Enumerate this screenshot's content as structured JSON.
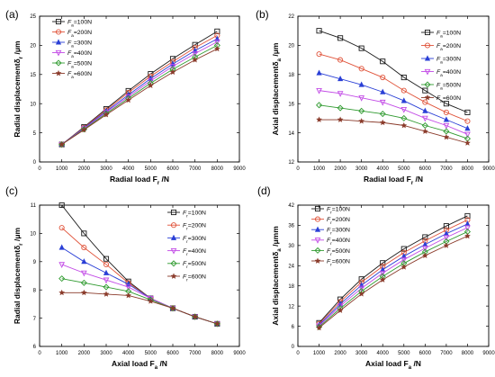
{
  "figure": {
    "series_colors": [
      "#1a1a1a",
      "#e0533a",
      "#2a3fd6",
      "#c24ae6",
      "#2f9a2f",
      "#8a3a2a"
    ],
    "series_markers": [
      "square",
      "circle",
      "triangle-up",
      "triangle-down",
      "diamond",
      "star"
    ]
  },
  "chart_data": [
    {
      "type": "line",
      "panel_label": "(a)",
      "xlabel": "Radial load F",
      "xlabel_sub": "r",
      "xlabel_unit": " /N",
      "ylabel": "Radial displacementδ",
      "ylabel_sub": "r",
      "ylabel_unit": " /μm",
      "xlim": [
        0,
        9000
      ],
      "ylim": [
        0,
        25
      ],
      "xticks": [
        0,
        1000,
        2000,
        3000,
        4000,
        5000,
        6000,
        7000,
        8000,
        9000
      ],
      "yticks": [
        0,
        5,
        10,
        15,
        20,
        25
      ],
      "legend_position": "top-left",
      "x": [
        1000,
        2000,
        3000,
        4000,
        5000,
        6000,
        7000,
        8000
      ],
      "series": [
        {
          "name": "F",
          "sub": "a",
          "suffix": "=100N",
          "values": [
            3.0,
            6.0,
            9.1,
            12.2,
            15.1,
            17.7,
            20.1,
            22.4
          ]
        },
        {
          "name": "F",
          "sub": "a",
          "suffix": "=200N",
          "values": [
            3.0,
            5.9,
            8.9,
            11.9,
            14.7,
            17.2,
            19.6,
            21.7
          ]
        },
        {
          "name": "F",
          "sub": "a",
          "suffix": "=300N",
          "values": [
            3.0,
            5.8,
            8.7,
            11.5,
            14.3,
            16.8,
            19.1,
            21.1
          ]
        },
        {
          "name": "F",
          "sub": "a",
          "suffix": "=400N",
          "values": [
            3.0,
            5.7,
            8.5,
            11.2,
            13.9,
            16.4,
            18.6,
            20.6
          ]
        },
        {
          "name": "F",
          "sub": "a",
          "suffix": "=500N",
          "values": [
            3.0,
            5.6,
            8.3,
            10.9,
            13.5,
            15.9,
            18.0,
            20.0
          ]
        },
        {
          "name": "F",
          "sub": "a",
          "suffix": "=600N",
          "values": [
            3.0,
            5.5,
            8.1,
            10.6,
            13.1,
            15.4,
            17.5,
            19.4
          ]
        }
      ]
    },
    {
      "type": "line",
      "panel_label": "(b)",
      "xlabel": "Radial load F",
      "xlabel_sub": "r",
      "xlabel_unit": " /N",
      "ylabel": "Axial displacementδ",
      "ylabel_sub": "a",
      "ylabel_unit": " /μm",
      "xlim": [
        0,
        9000
      ],
      "ylim": [
        12,
        22
      ],
      "xticks": [
        0,
        1000,
        2000,
        3000,
        4000,
        5000,
        6000,
        7000,
        8000,
        9000
      ],
      "yticks": [
        12,
        14,
        16,
        18,
        20,
        22
      ],
      "legend_position": "top-right",
      "x": [
        1000,
        2000,
        3000,
        4000,
        5000,
        6000,
        7000,
        8000
      ],
      "series": [
        {
          "name": "F",
          "sub": "a",
          "suffix": "=100N",
          "values": [
            21.0,
            20.5,
            19.8,
            18.9,
            17.8,
            16.9,
            16.0,
            15.4
          ]
        },
        {
          "name": "F",
          "sub": "a",
          "suffix": "=200N",
          "values": [
            19.4,
            19.0,
            18.4,
            17.8,
            16.9,
            16.1,
            15.4,
            14.8
          ]
        },
        {
          "name": "F",
          "sub": "a",
          "suffix": "=300N",
          "values": [
            18.1,
            17.7,
            17.3,
            16.8,
            16.2,
            15.5,
            14.9,
            14.3
          ]
        },
        {
          "name": "F",
          "sub": "a",
          "suffix": "=400N",
          "values": [
            16.9,
            16.7,
            16.4,
            16.1,
            15.6,
            15.0,
            14.5,
            13.9
          ]
        },
        {
          "name": "F",
          "sub": "a",
          "suffix": "=500N",
          "values": [
            15.9,
            15.7,
            15.5,
            15.3,
            15.0,
            14.5,
            14.1,
            13.6
          ]
        },
        {
          "name": "F",
          "sub": "a",
          "suffix": "=600N",
          "values": [
            14.9,
            14.9,
            14.8,
            14.7,
            14.5,
            14.1,
            13.7,
            13.3
          ]
        }
      ]
    },
    {
      "type": "line",
      "panel_label": "(c)",
      "xlabel": "Axial load F",
      "xlabel_sub": "a",
      "xlabel_unit": " /N",
      "ylabel": "Radial displacementδ",
      "ylabel_sub": "r",
      "ylabel_unit": " /μm",
      "xlim": [
        0,
        9000
      ],
      "ylim": [
        6,
        11
      ],
      "xticks": [
        0,
        1000,
        2000,
        3000,
        4000,
        5000,
        6000,
        7000,
        8000,
        9000
      ],
      "yticks": [
        6,
        7,
        8,
        9,
        10,
        11
      ],
      "legend_position": "top-right",
      "x": [
        1000,
        2000,
        3000,
        4000,
        5000,
        6000,
        7000,
        8000
      ],
      "series": [
        {
          "name": "F",
          "sub": "r",
          "suffix": "=100N",
          "values": [
            11.0,
            10.0,
            9.1,
            8.3,
            7.7,
            7.35,
            7.05,
            6.8
          ]
        },
        {
          "name": "F",
          "sub": "r",
          "suffix": "=200N",
          "values": [
            10.2,
            9.5,
            8.9,
            8.25,
            7.7,
            7.35,
            7.05,
            6.8
          ]
        },
        {
          "name": "F",
          "sub": "r",
          "suffix": "=300N",
          "values": [
            9.5,
            9.0,
            8.6,
            8.2,
            7.7,
            7.35,
            7.05,
            6.8
          ]
        },
        {
          "name": "F",
          "sub": "r",
          "suffix": "=400N",
          "values": [
            8.9,
            8.6,
            8.35,
            8.1,
            7.7,
            7.35,
            7.05,
            6.8
          ]
        },
        {
          "name": "F",
          "sub": "r",
          "suffix": "=500N",
          "values": [
            8.4,
            8.25,
            8.1,
            7.95,
            7.65,
            7.35,
            7.05,
            6.8
          ]
        },
        {
          "name": "F",
          "sub": "r",
          "suffix": "=600N",
          "values": [
            7.9,
            7.9,
            7.85,
            7.8,
            7.6,
            7.35,
            7.05,
            6.8
          ]
        }
      ]
    },
    {
      "type": "line",
      "panel_label": "(d)",
      "xlabel": "Axial load F",
      "xlabel_sub": "a",
      "xlabel_unit": " /N",
      "ylabel": "Axial displacementδ",
      "ylabel_sub": "a",
      "ylabel_unit": " /μmm",
      "xlim": [
        0,
        9000
      ],
      "ylim": [
        0,
        42
      ],
      "xticks": [
        0,
        1000,
        2000,
        3000,
        4000,
        5000,
        6000,
        7000,
        8000,
        9000
      ],
      "yticks": [
        0,
        6,
        12,
        18,
        24,
        30,
        36,
        42
      ],
      "legend_position": "top-left",
      "x": [
        1000,
        2000,
        3000,
        4000,
        5000,
        6000,
        7000,
        8000
      ],
      "series": [
        {
          "name": "F",
          "sub": "r",
          "suffix": "=100N",
          "values": [
            7.0,
            14.0,
            20.0,
            24.8,
            29.0,
            32.5,
            35.8,
            38.8
          ]
        },
        {
          "name": "F",
          "sub": "r",
          "suffix": "=200N",
          "values": [
            6.7,
            13.3,
            19.1,
            23.8,
            27.9,
            31.4,
            34.6,
            37.6
          ]
        },
        {
          "name": "F",
          "sub": "r",
          "suffix": "=300N",
          "values": [
            6.4,
            12.6,
            18.2,
            22.8,
            26.8,
            30.3,
            33.5,
            36.4
          ]
        },
        {
          "name": "F",
          "sub": "r",
          "suffix": "=400N",
          "values": [
            6.1,
            12.0,
            17.3,
            21.8,
            25.8,
            29.2,
            32.4,
            35.3
          ]
        },
        {
          "name": "F",
          "sub": "r",
          "suffix": "=500N",
          "values": [
            5.8,
            11.3,
            16.4,
            20.8,
            24.7,
            28.1,
            31.2,
            34.1
          ]
        },
        {
          "name": "F",
          "sub": "r",
          "suffix": "=600N",
          "values": [
            5.5,
            10.7,
            15.6,
            19.8,
            23.6,
            27.0,
            30.0,
            32.8
          ]
        }
      ]
    }
  ]
}
